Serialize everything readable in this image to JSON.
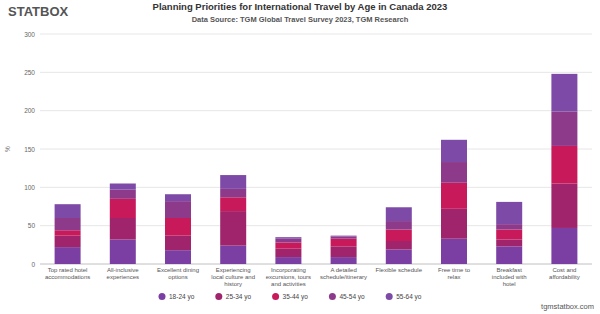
{
  "chart_data": {
    "type": "bar",
    "stacked": true,
    "title": "Planning Priorities for International Travel by Age in Canada 2023",
    "subtitle": "Data Source: TGM Global Travel Survey 2023, TGM Research",
    "y_label": "%",
    "annotations": [
      "STATBOX",
      "tgmstatbox.com"
    ],
    "categories": [
      "Top rated hotel accommodations",
      "All-inclusive experiences",
      "Excellent dining options",
      "Experiencing local culture and history",
      "Incorporating excursions, tours and activities",
      "A detailed schedule/itinerary",
      "Flexible schedule",
      "Free time to relax",
      "Breakfast included with hotel",
      "Cost and affordability"
    ],
    "series": [
      {
        "name": "18-24 yo",
        "color": "#7b3fa3",
        "values": [
          22,
          32,
          18,
          24,
          9,
          9,
          19,
          33,
          23,
          47
        ]
      },
      {
        "name": "25-34 yo",
        "color": "#a0246c",
        "values": [
          15,
          28,
          19,
          45,
          11,
          14,
          11,
          39,
          9,
          58
        ]
      },
      {
        "name": "35-44 yo",
        "color": "#c8195a",
        "values": [
          7,
          25,
          23,
          18,
          8,
          10,
          15,
          34,
          13,
          49
        ]
      },
      {
        "name": "45-54 yo",
        "color": "#8e3a8a",
        "values": [
          16,
          12,
          22,
          11,
          5,
          3,
          11,
          27,
          7,
          45
        ]
      },
      {
        "name": "55-64 yo",
        "color": "#7d4aa8",
        "values": [
          18,
          8,
          9,
          18,
          2,
          1,
          18,
          29,
          29,
          49
        ]
      }
    ],
    "ylim": [
      0,
      300
    ],
    "yticks": [
      0,
      50,
      100,
      150,
      200,
      250,
      300
    ],
    "grid": true,
    "legend": "bottom"
  }
}
